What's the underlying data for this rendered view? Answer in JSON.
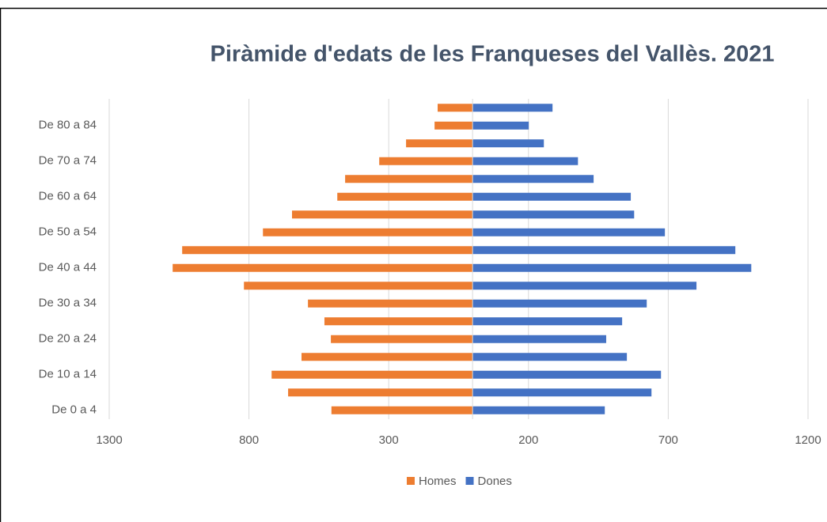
{
  "chart_data": {
    "type": "bar",
    "orientation": "horizontal",
    "stacked": true,
    "title": "Piràmide d'edats de les Franqueses del Vallès. 2021",
    "categories": [
      "De 0 a 4",
      null,
      "De 10 a 14",
      null,
      "De 20 a 24",
      null,
      "De 30 a 34",
      null,
      "De 40 a 44",
      null,
      "De 50 a 54",
      null,
      "De 60 a 64",
      null,
      "De 70 a 74",
      null,
      "De 80 a 84",
      null
    ],
    "series": [
      {
        "name": "Homes",
        "color": "#ed7d31",
        "values": [
          -505,
          -660,
          -719,
          -612,
          -507,
          -530,
          -589,
          -818,
          -1073,
          -1039,
          -750,
          -646,
          -484,
          -456,
          -334,
          -238,
          -136,
          -125
        ]
      },
      {
        "name": "Dones",
        "color": "#4472c4",
        "values": [
          473,
          640,
          674,
          552,
          478,
          535,
          623,
          801,
          997,
          940,
          688,
          578,
          566,
          433,
          377,
          255,
          201,
          286
        ]
      }
    ],
    "xlim": [
      -1300,
      1200
    ],
    "xticks": [
      {
        "value": -1300,
        "label": "1300"
      },
      {
        "value": -800,
        "label": "800"
      },
      {
        "value": -300,
        "label": "300"
      },
      200,
      700,
      1200
    ],
    "grid": true,
    "legend": "bottom"
  }
}
